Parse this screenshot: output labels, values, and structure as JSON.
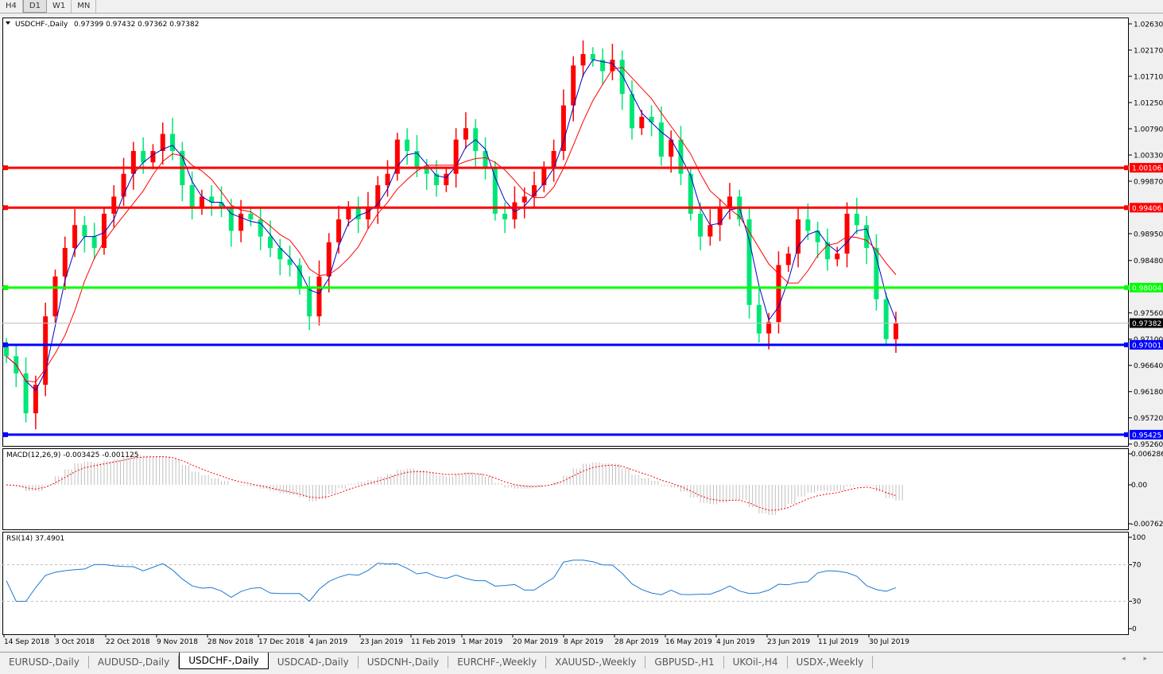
{
  "timeframes": [
    {
      "label": "H4",
      "active": false
    },
    {
      "label": "D1",
      "active": true
    },
    {
      "label": "W1",
      "active": false
    },
    {
      "label": "MN",
      "active": false
    }
  ],
  "chart_header": {
    "symbol": "USDCHF-,Daily",
    "ohlc": "0.97399 0.97432 0.97362 0.97382"
  },
  "price_axis": {
    "ticks": [
      "1.02630",
      "1.02170",
      "1.01710",
      "1.01250",
      "1.00790",
      "1.00330",
      "0.99870",
      "0.98950",
      "0.98480",
      "0.97560",
      "0.97100",
      "0.96640",
      "0.96180",
      "0.95720",
      "0.95260"
    ],
    "min": 0.9526,
    "max": 1.0263
  },
  "current_price": {
    "label": "0.97382",
    "value": 0.97382,
    "color": "#000000"
  },
  "levels": [
    {
      "label": "1.00106",
      "value": 1.00106,
      "color": "#ff0000"
    },
    {
      "label": "0.99406",
      "value": 0.99406,
      "color": "#ff0000"
    },
    {
      "label": "0.98004",
      "value": 0.98004,
      "color": "#00ff00"
    },
    {
      "label": "0.97001",
      "value": 0.97001,
      "color": "#0000ff"
    },
    {
      "label": "0.95425",
      "value": 0.95425,
      "color": "#0000ff"
    }
  ],
  "candle_colors": {
    "up": "#ff0000",
    "down": "#00e676"
  },
  "ma_colors": {
    "fast": "#0000cc",
    "slow": "#ff0000"
  },
  "closes": [
    0.968,
    0.965,
    0.958,
    0.963,
    0.975,
    0.982,
    0.987,
    0.991,
    0.989,
    0.987,
    0.993,
    0.996,
    1.0,
    1.004,
    1.002,
    1.004,
    1.007,
    1.004,
    0.998,
    0.994,
    0.996,
    0.995,
    0.994,
    0.99,
    0.993,
    0.992,
    0.989,
    0.987,
    0.985,
    0.984,
    0.98,
    0.975,
    0.982,
    0.988,
    0.992,
    0.994,
    0.992,
    0.994,
    0.998,
    1.0,
    1.006,
    1.004,
    1.001,
    1.0,
    0.998,
    1.0,
    1.006,
    1.008,
    1.004,
    1.001,
    0.993,
    0.992,
    0.995,
    0.996,
    0.998,
    1.001,
    1.004,
    1.012,
    1.019,
    1.021,
    1.02,
    1.018,
    1.02,
    1.014,
    1.008,
    1.01,
    1.009,
    1.003,
    1.006,
    1.0,
    0.993,
    0.989,
    0.991,
    0.994,
    0.996,
    0.992,
    0.977,
    0.972,
    0.974,
    0.984,
    0.986,
    0.992,
    0.99,
    0.988,
    0.985,
    0.986,
    0.993,
    0.991,
    0.987,
    0.978,
    0.971,
    0.97382
  ],
  "macd": {
    "label": "MACD(12,26,9) -0.003425 -0.001125",
    "ticks": [
      "0.006286",
      "0.00",
      "-0.00762"
    ],
    "max": 0.006286,
    "min": -0.00762
  },
  "rsi": {
    "label": "RSI(14) 37.4901",
    "ticks": [
      "100",
      "70",
      "30",
      "0"
    ],
    "levels": [
      70,
      30
    ],
    "color": "#1e78d2"
  },
  "date_axis": [
    "14 Sep 2018",
    "3 Oct 2018",
    "22 Oct 2018",
    "9 Nov 2018",
    "28 Nov 2018",
    "17 Dec 2018",
    "4 Jan 2019",
    "23 Jan 2019",
    "11 Feb 2019",
    "1 Mar 2019",
    "20 Mar 2019",
    "8 Apr 2019",
    "28 Apr 2019",
    "16 May 2019",
    "4 Jun 2019",
    "23 Jun 2019",
    "11 Jul 2019",
    "30 Jul 2019"
  ],
  "tabs": [
    {
      "label": "EURUSD-,Daily"
    },
    {
      "label": "AUDUSD-,Daily"
    },
    {
      "label": "USDCHF-,Daily",
      "active": true
    },
    {
      "label": "USDCAD-,Daily"
    },
    {
      "label": "USDCNH-,Daily"
    },
    {
      "label": "EURCHF-,Weekly"
    },
    {
      "label": "XAUUSD-,Weekly"
    },
    {
      "label": "GBPUSD-,H1"
    },
    {
      "label": "UKOil-,H4"
    },
    {
      "label": "USDX-,Weekly"
    }
  ],
  "scroll_arrows": "◂ ▸"
}
